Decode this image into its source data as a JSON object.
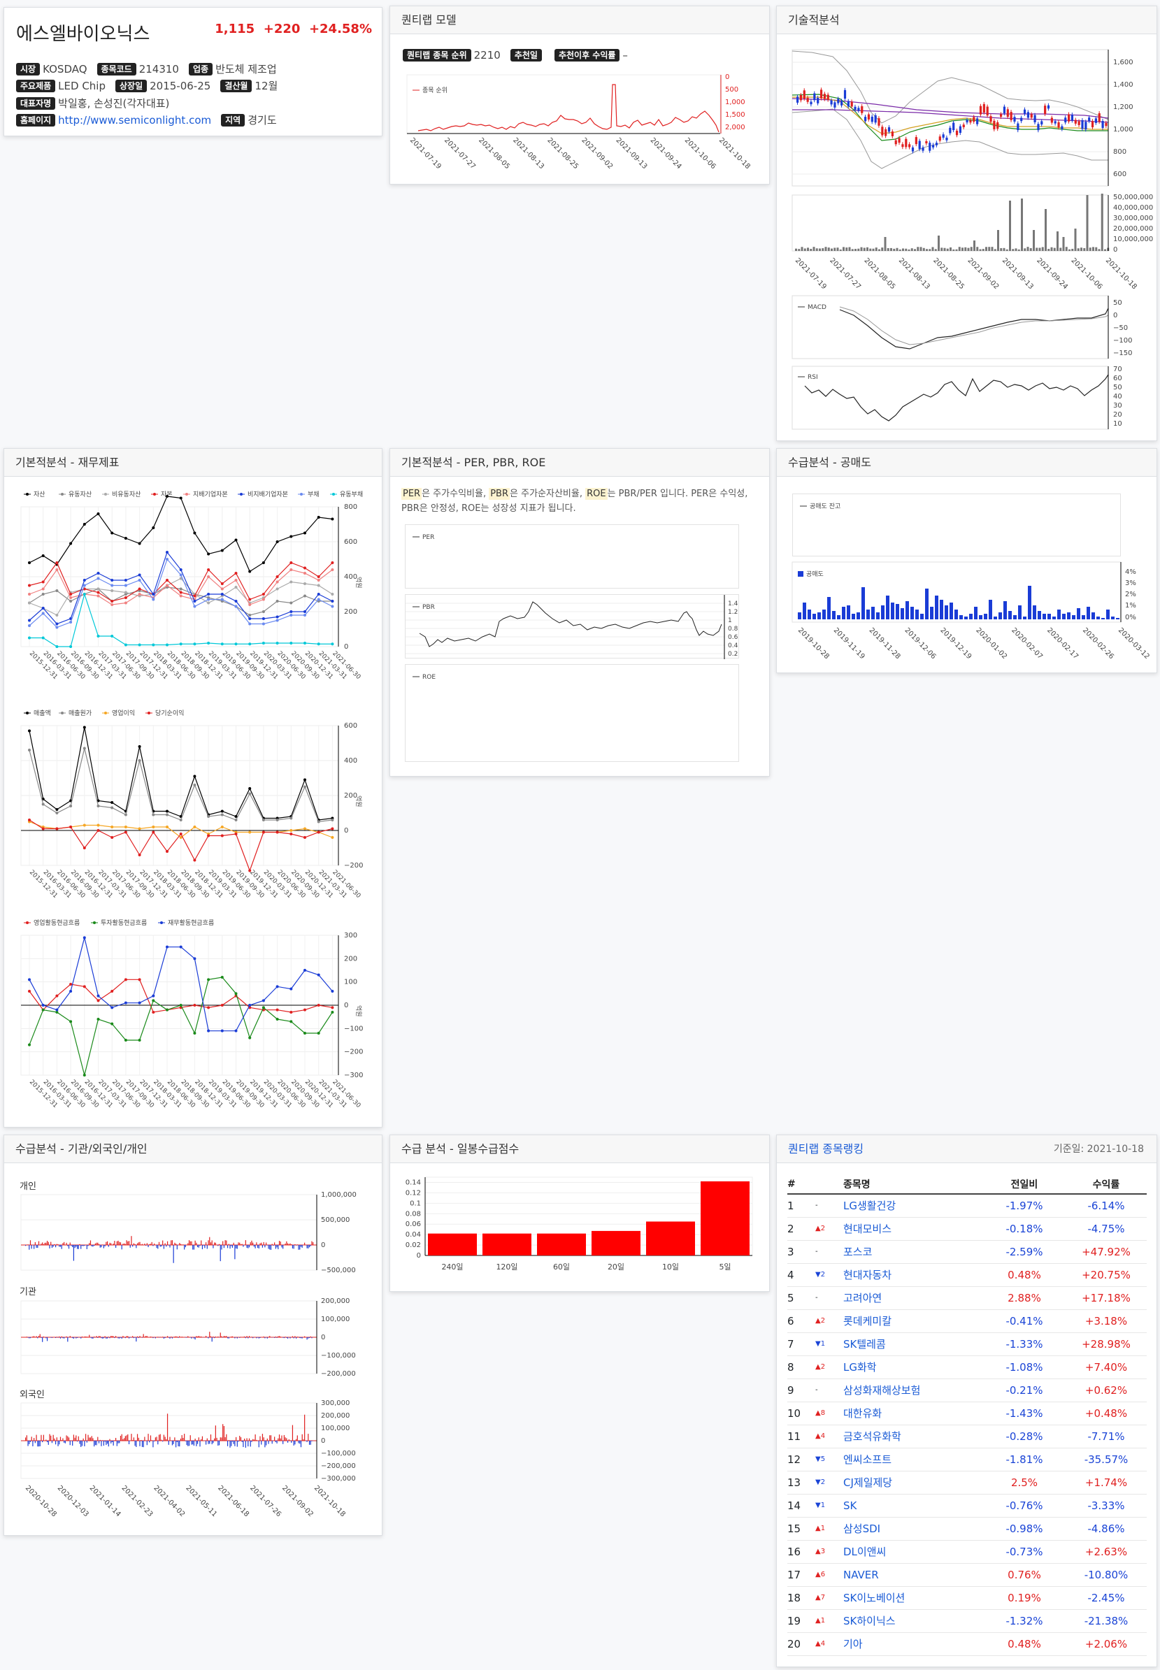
{
  "summary": {
    "name": "에스엘바이오닉스",
    "price": "1,115",
    "change": "+220",
    "rate": "+24.58%",
    "market_label": "시장",
    "market": "KOSDAQ",
    "code_label": "종목코드",
    "code": "214310",
    "industry_label": "업종",
    "industry": "반도체 제조업",
    "product_label": "주요제품",
    "product": "LED Chip",
    "listed_label": "상장일",
    "listed": "2015-06-25",
    "fiscal_label": "결산월",
    "fiscal": "12월",
    "ceo_label": "대표자명",
    "ceo": "박일홍, 손성진(각자대표)",
    "home_label": "홈페이지",
    "home": "http://www.semiconlight.com",
    "region_label": "지역",
    "region": "경기도"
  },
  "quant": {
    "title": "퀀티랩 모델",
    "rank_label": "퀀티랩 종목 순위",
    "rank": "2210",
    "rec_label": "추천일",
    "yield_label": "추천이후 수익률",
    "yield": "–",
    "legend": "종목 순위",
    "yticks": [
      "0",
      "500",
      "1,000",
      "1,500",
      "2,000"
    ],
    "xticks": [
      "2021-07-19",
      "2021-07-27",
      "2021-08-05",
      "2021-08-13",
      "2021-08-25",
      "2021-09-02",
      "2021-09-13",
      "2021-09-24",
      "2021-10-06",
      "2021-10-18"
    ]
  },
  "tech": {
    "title": "기술적분석",
    "price_ticks": [
      "1,600",
      "1,400",
      "1,200",
      "1,000",
      "800",
      "600"
    ],
    "vol_ticks": [
      "50,000,000",
      "40,000,000",
      "30,000,000",
      "20,000,000",
      "10,000,000",
      "0"
    ],
    "xticks": [
      "2021-07-19",
      "2021-07-27",
      "2021-08-05",
      "2021-08-13",
      "2021-08-25",
      "2021-09-02",
      "2021-09-13",
      "2021-09-24",
      "2021-10-06",
      "2021-10-18"
    ],
    "macd_label": "MACD",
    "macd_ticks": [
      "50",
      "0",
      "−50",
      "−100",
      "−150"
    ],
    "rsi_label": "RSI",
    "rsi_ticks": [
      "70",
      "60",
      "50",
      "40",
      "30",
      "20",
      "10"
    ]
  },
  "fin": {
    "title": "기본적분석 - 재무제표",
    "legend1": [
      "자산",
      "유동자산",
      "비유동자산",
      "자본",
      "지배기업자본",
      "비지배기업자본",
      "부채",
      "유동부채"
    ],
    "legend1_colors": [
      "#000000",
      "#888888",
      "#aaaaaa",
      "#e02020",
      "#f08080",
      "#1a3cd6",
      "#6a8af0",
      "#00c8d8"
    ],
    "ticks1": [
      "800",
      "600",
      "400",
      "200",
      "0"
    ],
    "legend2": [
      "매출액",
      "매출원가",
      "영업이익",
      "당기순이익"
    ],
    "legend2_colors": [
      "#000000",
      "#888888",
      "#f5a623",
      "#e02020"
    ],
    "ticks2": [
      "600",
      "400",
      "200",
      "0",
      "−200"
    ],
    "legend3": [
      "영업활동현금흐름",
      "투자활동현금흐름",
      "재무활동현금흐름"
    ],
    "legend3_colors": [
      "#e02020",
      "#1a8a1a",
      "#1a3cd6"
    ],
    "ticks3": [
      "300",
      "200",
      "100",
      "0",
      "−100",
      "−200",
      "−300"
    ],
    "unit": "억원",
    "xticks": [
      "2015-12-31",
      "2016-03-31",
      "2016-06-30",
      "2016-09-30",
      "2016-12-31",
      "2017-03-31",
      "2017-06-30",
      "2017-09-30",
      "2017-12-31",
      "2018-03-31",
      "2018-06-30",
      "2018-09-30",
      "2018-12-31",
      "2019-03-31",
      "2019-06-30",
      "2019-09-30",
      "2019-12-31",
      "2020-03-31",
      "2020-06-30",
      "2020-09-30",
      "2020-12-31",
      "2021-03-31",
      "2021-06-30"
    ]
  },
  "per": {
    "title": "기본적분석 - PER, PBR, ROE",
    "t_per": "PER",
    "t1": "은 주가수익비율, ",
    "t_pbr": "PBR",
    "t2": "은 주가순자산비율, ",
    "t_roe": "ROE",
    "t3": "는 PBR/PER 입니다. PER은 수익성, PBR은 안정성, ROE는 성장성 지표가 됩니다.",
    "per_label": "PER",
    "pbr_label": "PBR",
    "roe_label": "ROE",
    "pbr_ticks": [
      "1.4",
      "1.2",
      "1",
      "0.8",
      "0.6",
      "0.4",
      "0.2"
    ]
  },
  "short": {
    "title": "수급분석 - 공매도",
    "legend1": "공매도 잔고",
    "legend2": "공매도",
    "ticks": [
      "4%",
      "3%",
      "2%",
      "1%",
      "0%"
    ],
    "xticks": [
      "2019-10-28",
      "2019-11-19",
      "2019-11-28",
      "2019-12-06",
      "2019-12-19",
      "2020-01-02",
      "2020-02-07",
      "2020-02-17",
      "2020-02-26",
      "2020-03-12"
    ]
  },
  "flow": {
    "title": "수급분석 - 기관/외국인/개인",
    "ind_label": "개인",
    "ind_ticks": [
      "1,000,000",
      "500,000",
      "0",
      "−500,000"
    ],
    "inst_label": "기관",
    "inst_ticks": [
      "200,000",
      "100,000",
      "0",
      "−100,000",
      "−200,000"
    ],
    "for_label": "외국인",
    "for_ticks": [
      "300,000",
      "200,000",
      "100,000",
      "0",
      "−100,000",
      "−200,000",
      "−300,000"
    ],
    "xticks": [
      "2020-10-28",
      "2020-12-03",
      "2021-01-14",
      "2021-02-23",
      "2021-04-02",
      "2021-05-11",
      "2021-06-18",
      "2021-07-26",
      "2021-09-02",
      "2021-10-18"
    ]
  },
  "score": {
    "title": "수급 분석 - 일봉수급점수",
    "yticks": [
      "0.14",
      "0.12",
      "0.1",
      "0.08",
      "0.06",
      "0.04",
      "0.02",
      "0"
    ],
    "chart_data": {
      "type": "bar",
      "categories": [
        "240일",
        "120일",
        "60일",
        "20일",
        "10일",
        "5일"
      ],
      "values": [
        0.042,
        0.042,
        0.042,
        0.047,
        0.065,
        0.142
      ],
      "ylim": [
        0,
        0.15
      ]
    }
  },
  "ranking": {
    "title": "퀀티랩 종목랭킹",
    "ref_date": "기준일: 2021-10-18",
    "headers": [
      "#",
      "종목명",
      "전일비",
      "수익률"
    ],
    "rows": [
      {
        "n": "1",
        "mv": "-",
        "d": "",
        "name": "LG생활건강",
        "chg": "-1.97%",
        "ret": "-6.14%"
      },
      {
        "n": "2",
        "mv": "▲2",
        "d": "up",
        "name": "현대모비스",
        "chg": "-0.18%",
        "ret": "-4.75%"
      },
      {
        "n": "3",
        "mv": "-",
        "d": "",
        "name": "포스코",
        "chg": "-2.59%",
        "ret": "+47.92%"
      },
      {
        "n": "4",
        "mv": "▼2",
        "d": "dn",
        "name": "현대자동차",
        "chg": "0.48%",
        "ret": "+20.75%"
      },
      {
        "n": "5",
        "mv": "-",
        "d": "",
        "name": "고려아연",
        "chg": "2.88%",
        "ret": "+17.18%"
      },
      {
        "n": "6",
        "mv": "▲2",
        "d": "up",
        "name": "롯데케미칼",
        "chg": "-0.41%",
        "ret": "+3.18%"
      },
      {
        "n": "7",
        "mv": "▼1",
        "d": "dn",
        "name": "SK텔레콤",
        "chg": "-1.33%",
        "ret": "+28.98%"
      },
      {
        "n": "8",
        "mv": "▲2",
        "d": "up",
        "name": "LG화학",
        "chg": "-1.08%",
        "ret": "+7.40%"
      },
      {
        "n": "9",
        "mv": "-",
        "d": "",
        "name": "삼성화재해상보험",
        "chg": "-0.21%",
        "ret": "+0.62%"
      },
      {
        "n": "10",
        "mv": "▲8",
        "d": "up",
        "name": "대한유화",
        "chg": "-1.43%",
        "ret": "+0.48%"
      },
      {
        "n": "11",
        "mv": "▲4",
        "d": "up",
        "name": "금호석유화학",
        "chg": "-0.28%",
        "ret": "-7.71%"
      },
      {
        "n": "12",
        "mv": "▼5",
        "d": "dn",
        "name": "엔씨소프트",
        "chg": "-1.81%",
        "ret": "-35.57%"
      },
      {
        "n": "13",
        "mv": "▼2",
        "d": "dn",
        "name": "CJ제일제당",
        "chg": "2.5%",
        "ret": "+1.74%"
      },
      {
        "n": "14",
        "mv": "▼1",
        "d": "dn",
        "name": "SK",
        "chg": "-0.76%",
        "ret": "-3.33%"
      },
      {
        "n": "15",
        "mv": "▲1",
        "d": "up",
        "name": "삼성SDI",
        "chg": "-0.98%",
        "ret": "-4.86%"
      },
      {
        "n": "16",
        "mv": "▲3",
        "d": "up",
        "name": "DL이앤씨",
        "chg": "-0.73%",
        "ret": "+2.63%"
      },
      {
        "n": "17",
        "mv": "▲6",
        "d": "up",
        "name": "NAVER",
        "chg": "0.76%",
        "ret": "-10.80%"
      },
      {
        "n": "18",
        "mv": "▲7",
        "d": "up",
        "name": "SK이노베이션",
        "chg": "0.19%",
        "ret": "-2.45%"
      },
      {
        "n": "19",
        "mv": "▲1",
        "d": "up",
        "name": "SK하이닉스",
        "chg": "-1.32%",
        "ret": "-21.38%"
      },
      {
        "n": "20",
        "mv": "▲4",
        "d": "up",
        "name": "기아",
        "chg": "0.48%",
        "ret": "+2.06%"
      }
    ]
  }
}
